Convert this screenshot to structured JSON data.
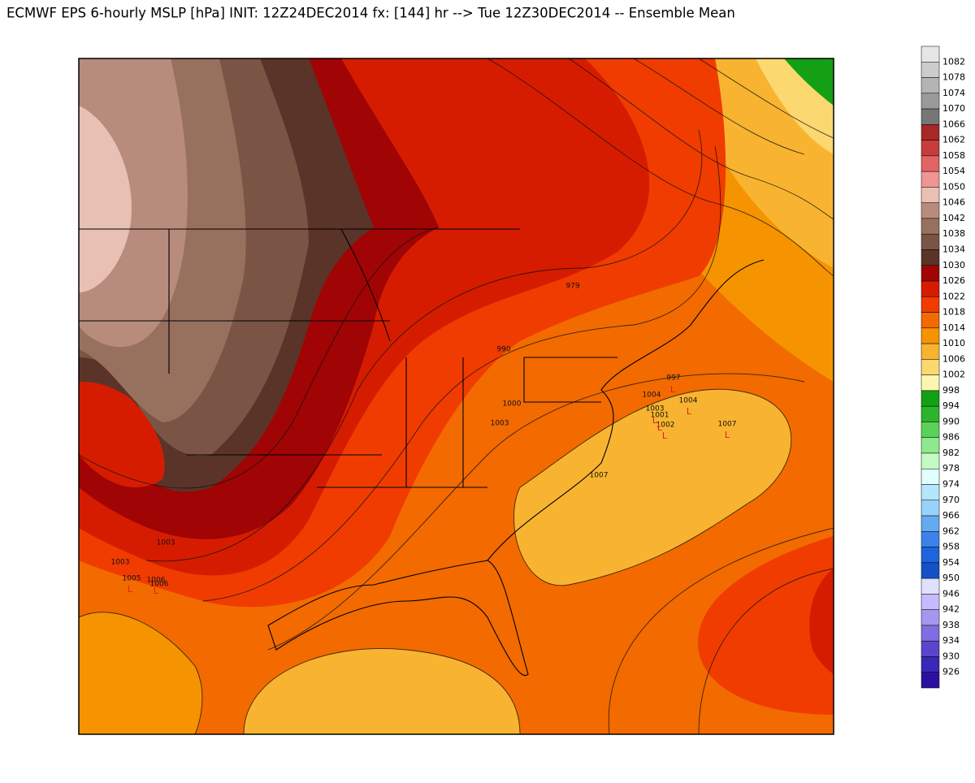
{
  "header": {
    "title": "ECMWF EPS 6-hourly MSLP [hPa] INIT: 12Z24DEC2014 fx: [144] hr --> Tue 12Z30DEC2014 -- Ensemble Mean"
  },
  "colorbar": {
    "labels": [
      "1082",
      "1078",
      "1074",
      "1070",
      "1066",
      "1062",
      "1058",
      "1054",
      "1050",
      "1046",
      "1042",
      "1038",
      "1034",
      "1030",
      "1026",
      "1022",
      "1018",
      "1014",
      "1010",
      "1006",
      "1002",
      "998",
      "994",
      "990",
      "986",
      "982",
      "978",
      "974",
      "970",
      "966",
      "962",
      "958",
      "954",
      "950",
      "946",
      "942",
      "938",
      "934",
      "930",
      "926"
    ],
    "colors": [
      "#e6e6e6",
      "#cccccc",
      "#b4b4b4",
      "#9a9a9a",
      "#767676",
      "#a82828",
      "#c83c3c",
      "#e06464",
      "#f09494",
      "#e8c0b4",
      "#b88c7c",
      "#98705e",
      "#7a5444",
      "#5a3428",
      "#a00404",
      "#d61c00",
      "#f03c00",
      "#f26a00",
      "#f59400",
      "#f8b430",
      "#fbd870",
      "#fef6b0",
      "#14a014",
      "#2cb42c",
      "#5ad25a",
      "#8ee88e",
      "#c4fac4",
      "#e2ffff",
      "#b4e6ff",
      "#96d2fa",
      "#64aaf0",
      "#3c82ea",
      "#1e64dc",
      "#1450c8",
      "#e0e0ff",
      "#c4bcff",
      "#a696f0",
      "#806ee0",
      "#5a46cc",
      "#3a28b8",
      "#2c10a0"
    ]
  },
  "map": {
    "low_labels": [
      "979",
      "990",
      "1000",
      "1003",
      "997",
      "1004",
      "1003",
      "1001",
      "1002",
      "1004",
      "1007",
      "1007",
      "1003",
      "1003",
      "1005",
      "1006",
      "1006"
    ],
    "low_marker": "L"
  }
}
